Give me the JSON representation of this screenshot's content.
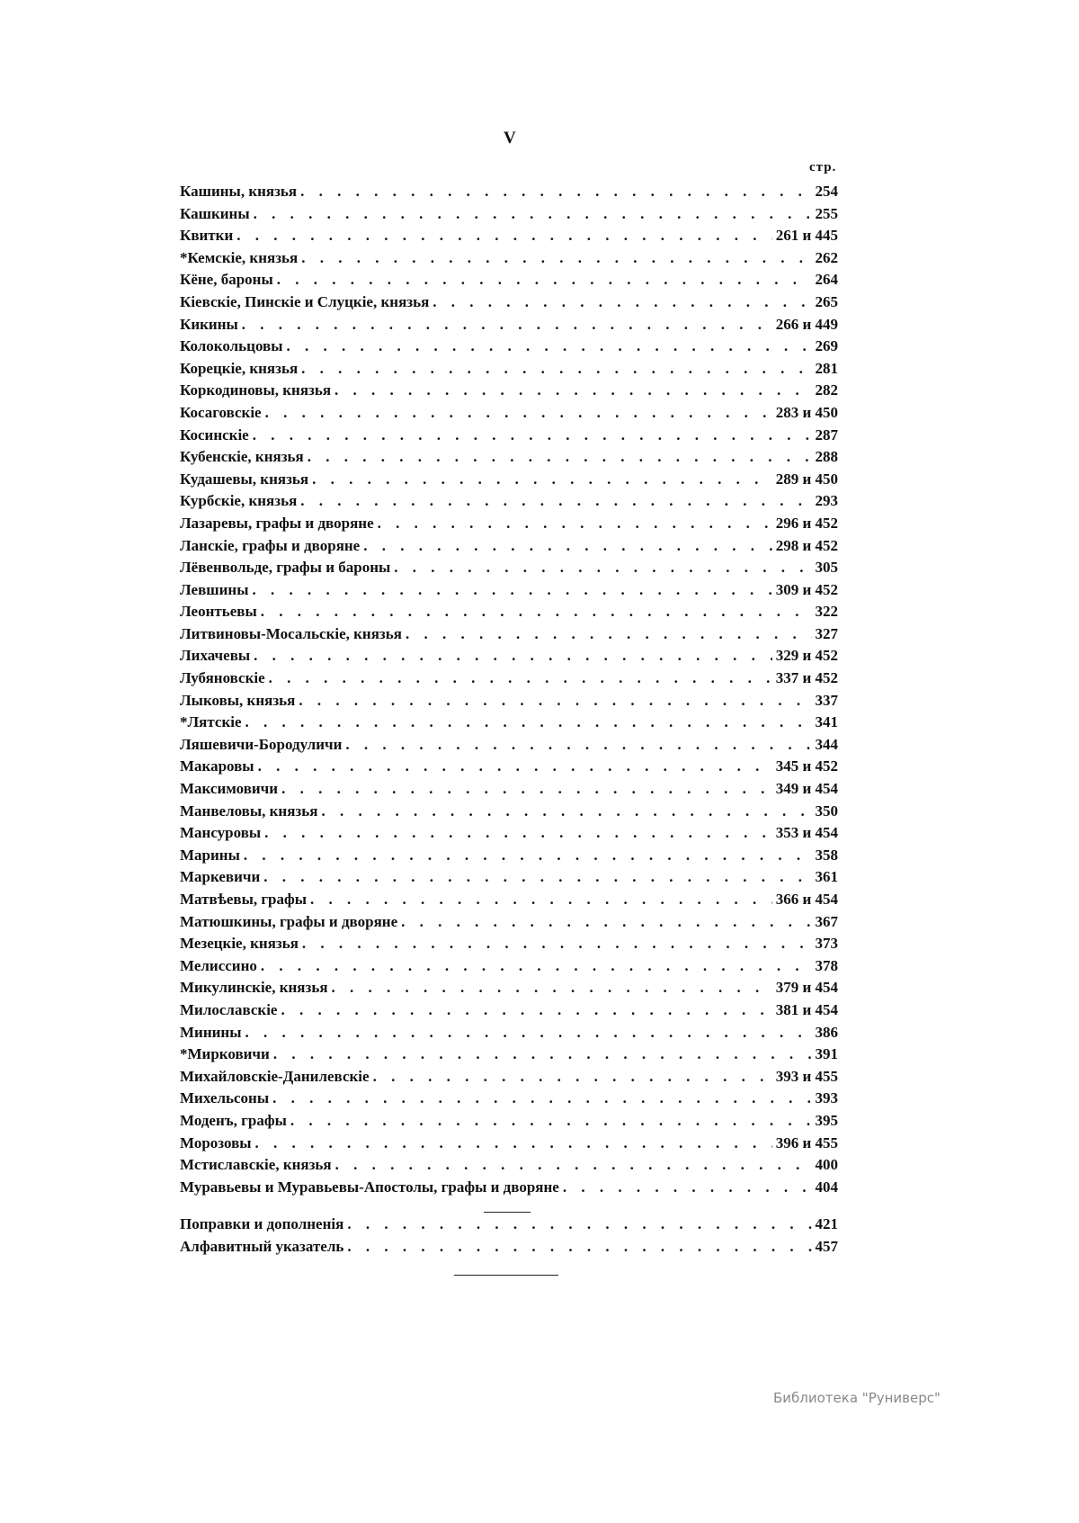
{
  "page": {
    "folio": "V",
    "page_column_label": "стр."
  },
  "entries": [
    {
      "name": "Кашины, князья",
      "pages": "254"
    },
    {
      "name": "Кашкины",
      "pages": "255"
    },
    {
      "name": "Квитки",
      "pages": "261 и 445"
    },
    {
      "name": "*Кемскіе, князья",
      "pages": "262"
    },
    {
      "name": "Кёне, бароны",
      "pages": "264"
    },
    {
      "name": "Кіевскіе, Пинскіе и Слуцкіе, князья",
      "pages": "265"
    },
    {
      "name": "Кикины",
      "pages": "266 и 449"
    },
    {
      "name": "Колокольцовы",
      "pages": "269"
    },
    {
      "name": "Корецкіе, князья",
      "pages": "281"
    },
    {
      "name": "Коркодиновы, князья",
      "pages": "282"
    },
    {
      "name": "Косаговскіе",
      "pages": "283 и 450"
    },
    {
      "name": "Косинскіе",
      "pages": "287"
    },
    {
      "name": "Кубенскіе, князья",
      "pages": "288"
    },
    {
      "name": "Кудашевы, князья",
      "pages": "289 и 450"
    },
    {
      "name": "Курбскіе, князья",
      "pages": "293"
    },
    {
      "name": "Лазаревы, графы и дворяне",
      "pages": "296 и 452"
    },
    {
      "name": "Ланскіе, графы и дворяне",
      "pages": "298 и 452"
    },
    {
      "name": "Лёвенвольде, графы и бароны",
      "pages": "305"
    },
    {
      "name": "Левшины",
      "pages": "309 и 452"
    },
    {
      "name": "Леонтьевы",
      "pages": "322"
    },
    {
      "name": "Литвиновы-Мосальскіе, князья",
      "pages": "327"
    },
    {
      "name": "Лихачевы",
      "pages": "329 и 452"
    },
    {
      "name": "Лубяновскіе",
      "pages": "337 и 452"
    },
    {
      "name": "Лыковы, князья",
      "pages": "337"
    },
    {
      "name": "*Лятскіе",
      "pages": "341"
    },
    {
      "name": "Ляшевичи-Бородуличи",
      "pages": "344"
    },
    {
      "name": "Макаровы",
      "pages": "345 и 452"
    },
    {
      "name": "Максимовичи",
      "pages": "349 и 454"
    },
    {
      "name": "Манвеловы, князья",
      "pages": "350"
    },
    {
      "name": "Мансуровы",
      "pages": "353 и 454"
    },
    {
      "name": "Марины",
      "pages": "358"
    },
    {
      "name": "Маркевичи",
      "pages": "361"
    },
    {
      "name": "Матвѣевы, графы",
      "pages": "366 и 454"
    },
    {
      "name": "Матюшкины, графы и дворяне",
      "pages": "367"
    },
    {
      "name": "Мезецкіе, князья",
      "pages": "373"
    },
    {
      "name": "Мелиссино",
      "pages": "378"
    },
    {
      "name": "Микулинскіе, князья",
      "pages": "379 и 454"
    },
    {
      "name": "Милославскіе",
      "pages": "381 и 454"
    },
    {
      "name": "Минины",
      "pages": "386"
    },
    {
      "name": "*Мирковичи",
      "pages": "391"
    },
    {
      "name": "Михайловскіе-Данилевскіе",
      "pages": "393 и 455"
    },
    {
      "name": "Михельсоны",
      "pages": "393"
    },
    {
      "name": "Моденъ, графы",
      "pages": "395"
    },
    {
      "name": "Морозовы",
      "pages": "396 и 455"
    },
    {
      "name": "Мстиславскіе, князья",
      "pages": "400"
    },
    {
      "name": "Муравьевы и Муравьевы-Апостолы, графы и дворяне",
      "pages": "404"
    }
  ],
  "appendix": [
    {
      "name": "Поправки и дополненія",
      "pages": "421"
    },
    {
      "name": "Алфавитный указатель",
      "pages": "457"
    }
  ],
  "watermark": "Библиотека \"Руниверс\""
}
